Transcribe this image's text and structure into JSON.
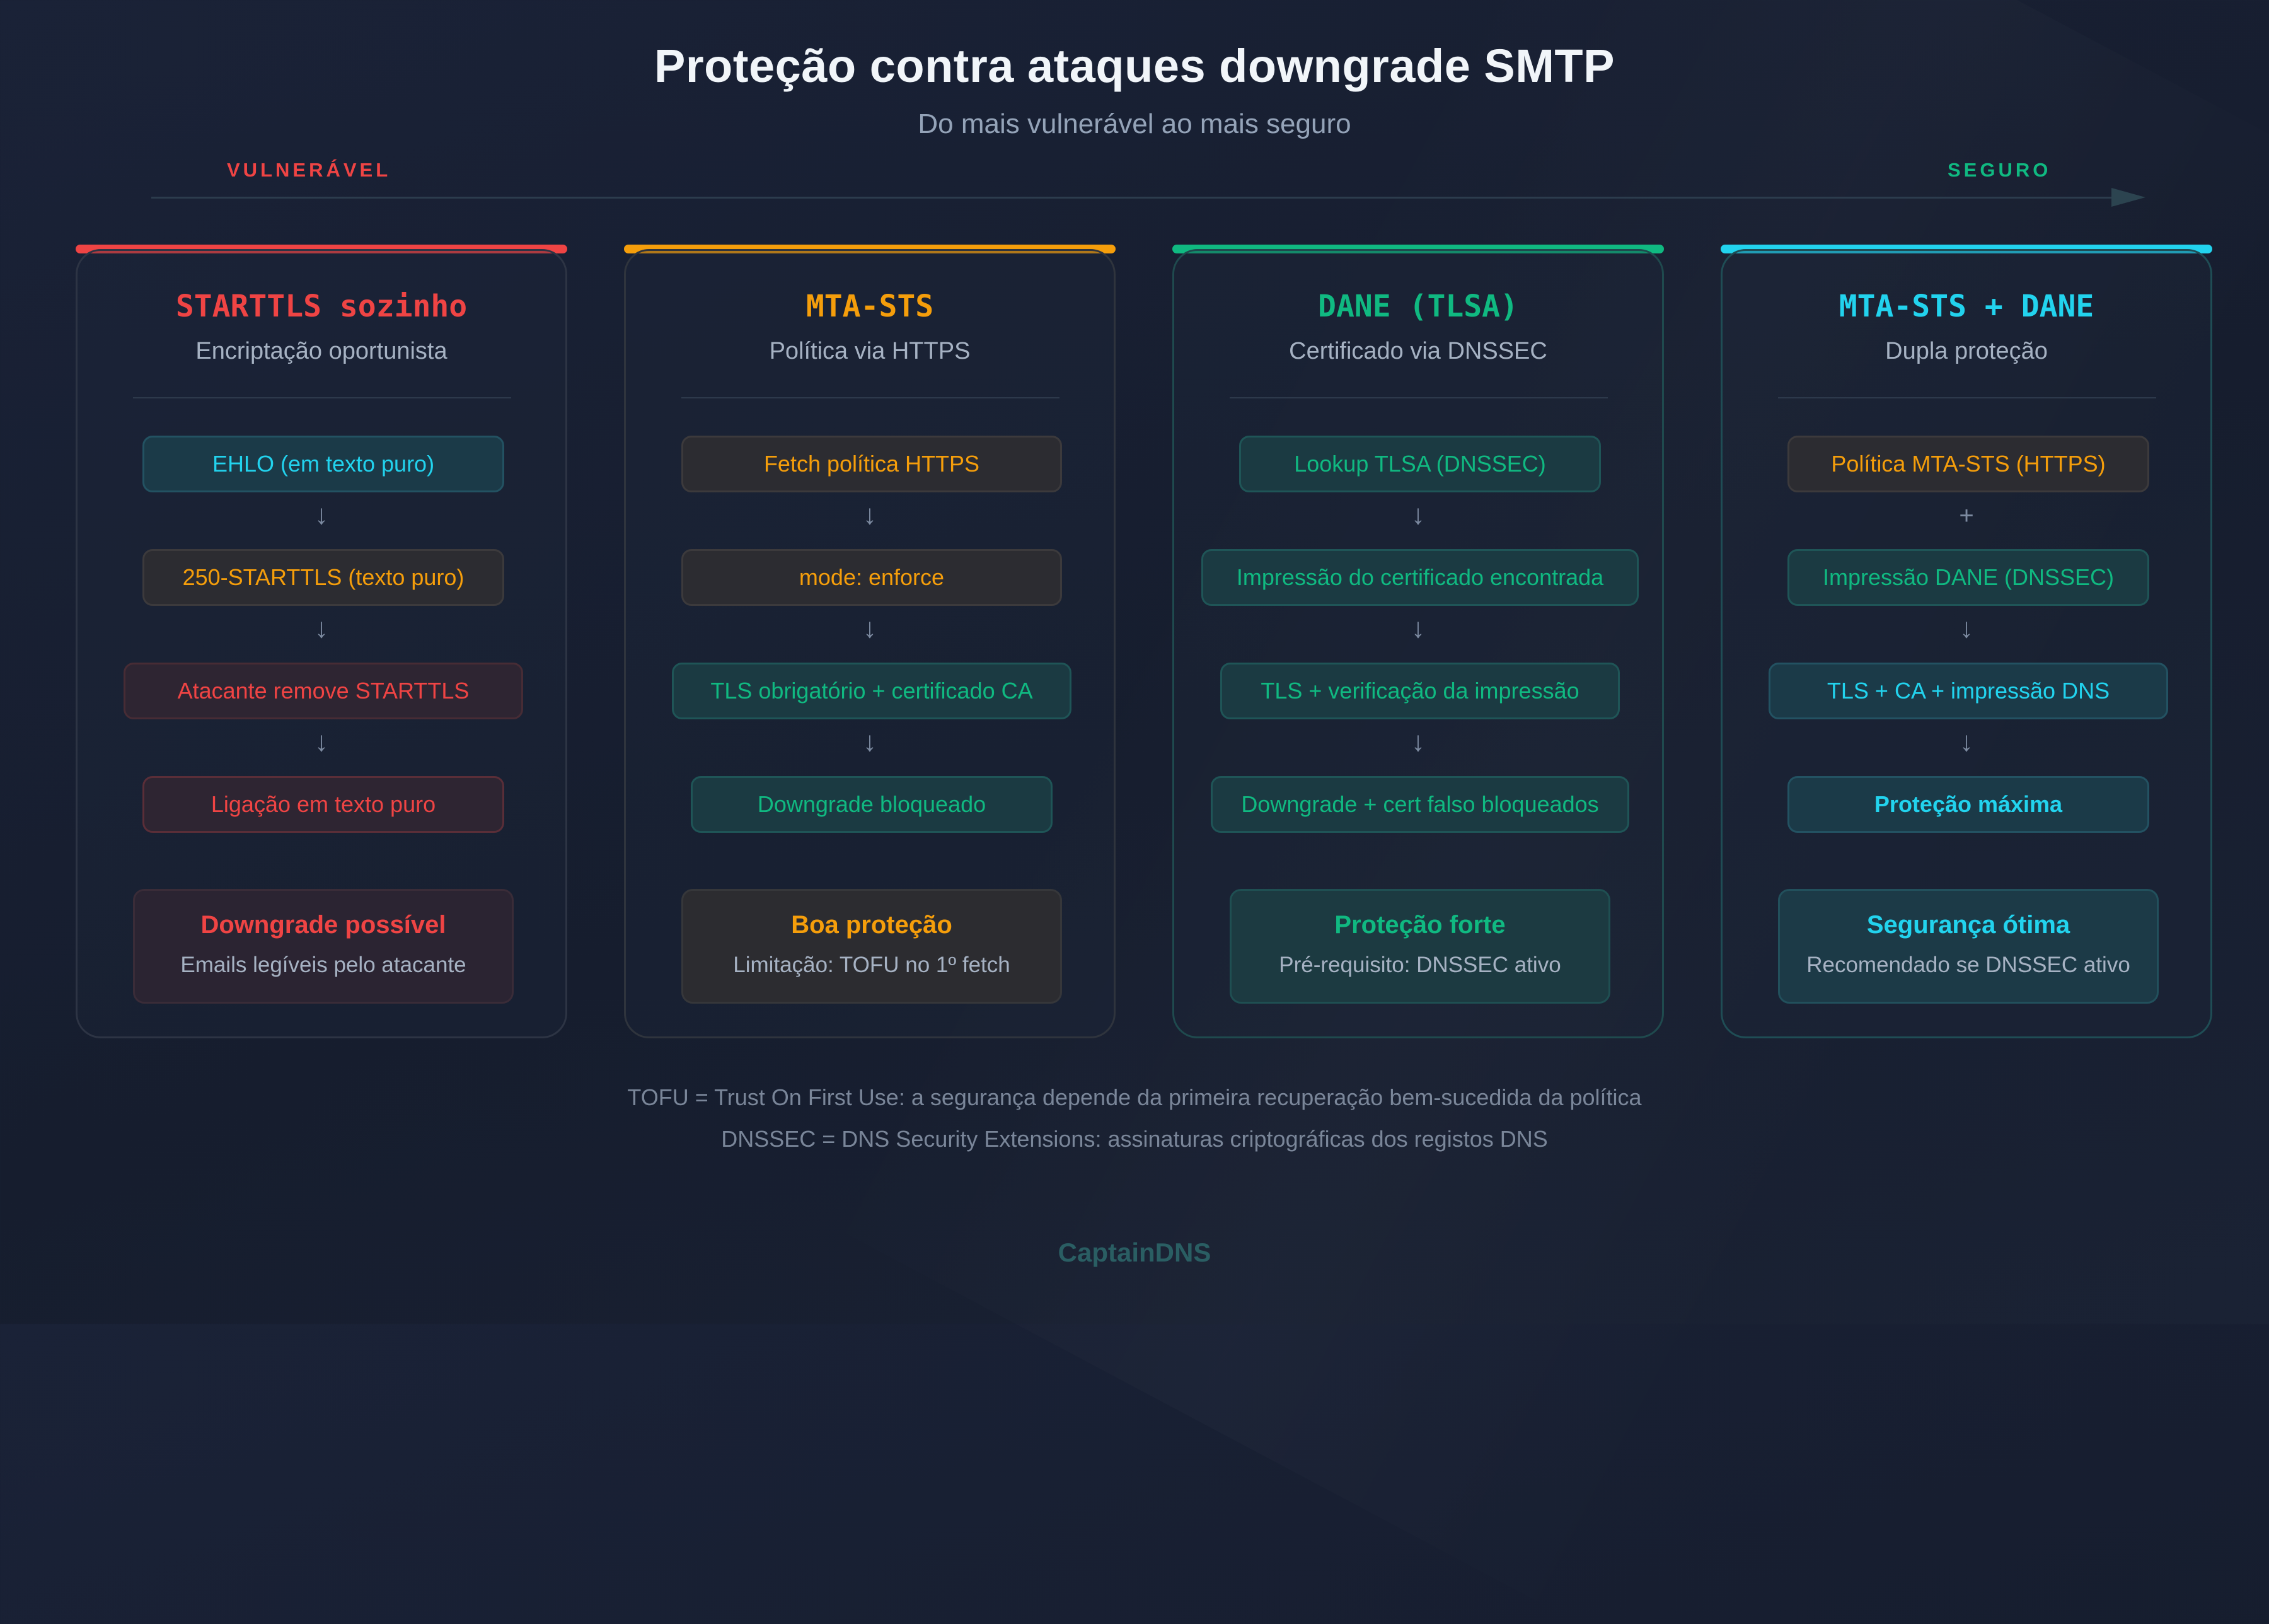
{
  "header": {
    "title": "Proteção contra ataques downgrade SMTP",
    "subtitle": "Do mais vulnerável ao mais seguro"
  },
  "scale": {
    "left_label": "VULNERÁVEL",
    "right_label": "SEGURO",
    "left_color": "#ef4444",
    "right_color": "#10b981"
  },
  "columns": [
    {
      "title": "STARTTLS sozinho",
      "subtitle": "Encriptação oportunista",
      "accent": "#ef4444",
      "steps": [
        "EHLO (em texto puro)",
        "250-STARTTLS (texto puro)",
        "Atacante remove STARTTLS",
        "Ligação em texto puro"
      ],
      "connectors": [
        "↓",
        "↓",
        "↓"
      ],
      "result_title": "Downgrade possível",
      "result_sub": "Emails legíveis pelo atacante"
    },
    {
      "title": "MTA-STS",
      "subtitle": "Política via HTTPS",
      "accent": "#f59e0b",
      "steps": [
        "Fetch política HTTPS",
        "mode: enforce",
        "TLS obrigatório + certificado CA",
        "Downgrade bloqueado"
      ],
      "connectors": [
        "↓",
        "↓",
        "↓"
      ],
      "result_title": "Boa proteção",
      "result_sub": "Limitação: TOFU no 1º fetch"
    },
    {
      "title": "DANE (TLSA)",
      "subtitle": "Certificado via DNSSEC",
      "accent": "#10b981",
      "steps": [
        "Lookup TLSA (DNSSEC)",
        "Impressão do certificado encontrada",
        "TLS + verificação da impressão",
        "Downgrade + cert falso bloqueados"
      ],
      "connectors": [
        "↓",
        "↓",
        "↓"
      ],
      "result_title": "Proteção forte",
      "result_sub": "Pré-requisito: DNSSEC ativo"
    },
    {
      "title": "MTA-STS + DANE",
      "subtitle": "Dupla proteção",
      "accent": "#22d3ee",
      "steps": [
        "Política MTA-STS (HTTPS)",
        "Impressão DANE (DNSSEC)",
        "TLS + CA + impressão DNS",
        "Proteção máxima"
      ],
      "connectors": [
        "+",
        "↓",
        "↓"
      ],
      "result_title": "Segurança ótima",
      "result_sub": "Recomendado se DNSSEC ativo"
    }
  ],
  "notes": [
    "TOFU = Trust On First Use: a segurança depende da primeira recuperação bem-sucedida da política",
    "DNSSEC = DNS Security Extensions: assinaturas criptográficas dos registos DNS"
  ],
  "footer": "CaptainDNS"
}
